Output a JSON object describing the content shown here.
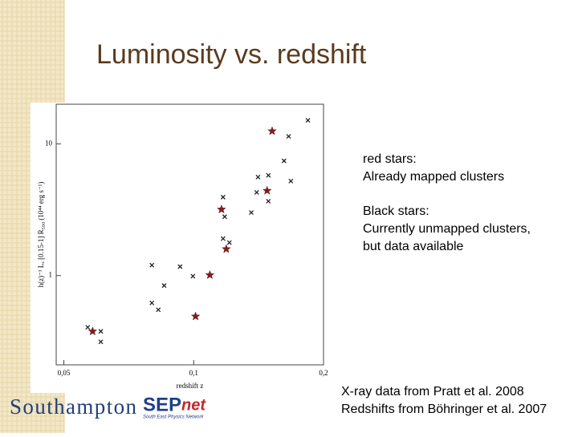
{
  "slide": {
    "title": "Luminosity vs. redshift",
    "notes": [
      "red stars:",
      "Already mapped clusters",
      "Black stars:",
      "Currently unmapped clusters,",
      "but data available"
    ],
    "credits": [
      "X-ray data from Pratt et al. 2008",
      "Redshifts from Böhringer et al. 2007"
    ],
    "logos": {
      "southampton": "Southampton",
      "sep": "SEP",
      "net": "net",
      "tagline": "South East Physics Network"
    }
  },
  "chart_data": {
    "type": "scatter",
    "x_label": "redshift z",
    "y_label": "h(z)⁻¹ Lₓ [0.15-1] R₅₀₀ (10⁴⁴ erg s⁻¹)",
    "log_x": true,
    "log_y": true,
    "xlim": [
      0.048,
      0.2
    ],
    "ylim": [
      0.21,
      20
    ],
    "xticks": [
      {
        "value": 0.05,
        "label": "0,05"
      },
      {
        "value": 0.1,
        "label": "0,1"
      },
      {
        "value": 0.2,
        "label": "0,2"
      }
    ],
    "yticks": [
      1,
      10
    ],
    "series": [
      {
        "color": "#222222",
        "marker": "cross",
        "x": [
          0.0568,
          0.0609,
          0.0609,
          0.08,
          0.08,
          0.0828,
          0.0854,
          0.093,
          0.0996,
          0.117,
          0.117,
          0.118,
          0.121,
          0.136,
          0.14,
          0.141,
          0.149,
          0.149,
          0.166,
          0.162,
          0.168,
          0.184
        ],
        "values": [
          0.405,
          0.377,
          0.314,
          1.2,
          0.62,
          0.55,
          0.84,
          1.17,
          0.99,
          3.94,
          1.91,
          2.8,
          1.78,
          3.01,
          4.28,
          5.6,
          5.77,
          3.67,
          11.4,
          7.43,
          5.22,
          15.1
        ]
      },
      {
        "color": "#8b1a1a",
        "marker": "star",
        "x": [
          0.0583,
          0.101,
          0.109,
          0.116,
          0.119,
          0.148,
          0.152
        ],
        "values": [
          0.377,
          0.49,
          1.01,
          3.18,
          1.59,
          4.41,
          12.5
        ]
      }
    ]
  }
}
